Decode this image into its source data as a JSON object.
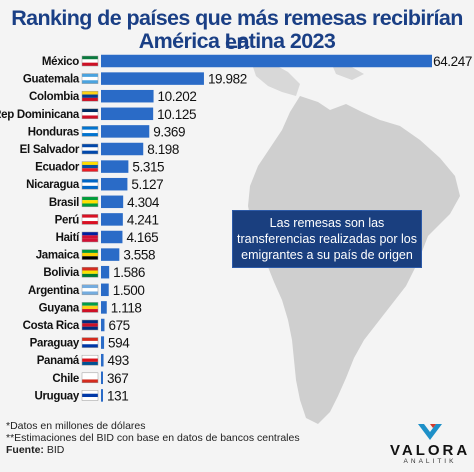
{
  "chart_data": {
    "type": "bar",
    "orientation": "horizontal",
    "title": "Ranking de países que más remesas recibirían en",
    "title_line2": "América Latina 2023",
    "categories": [
      "México",
      "Guatemala",
      "Colombia",
      "Rep Dominicana",
      "Honduras",
      "El Salvador",
      "Ecuador",
      "Nicaragua",
      "Brasil",
      "Perú",
      "Haití",
      "Jamaica",
      "Bolivia",
      "Argentina",
      "Guyana",
      "Costa Rica",
      "Paraguay",
      "Panamá",
      "Chile",
      "Uruguay"
    ],
    "values": [
      64247,
      19982,
      10202,
      10125,
      9369,
      8198,
      5315,
      5127,
      4304,
      4241,
      4165,
      3558,
      1586,
      1500,
      1118,
      675,
      594,
      493,
      367,
      131
    ],
    "value_labels": [
      "64.247",
      "19.982",
      "10.202",
      "10.125",
      "9.369",
      "8.198",
      "5.315",
      "5.127",
      "4.304",
      "4.241",
      "4.165",
      "3.558",
      "1.586",
      "1.500",
      "1.118",
      "675",
      "594",
      "493",
      "367",
      "131"
    ],
    "bar_color": "#2a6bc7",
    "legend": "none",
    "grid": false
  },
  "infobox": {
    "line1": "Las remesas son las",
    "line2": "transferencias realizadas por los",
    "line3": "emigrantes a su país de origen"
  },
  "notes": {
    "note1": "*Datos en millones de dólares",
    "note2": "**Estimaciones del BID con base en datos de bancos centrales",
    "source_label": "Fuente:",
    "source_value": "BID"
  },
  "logo": {
    "name": "VALORA",
    "sub": "ANALITIK"
  },
  "colors": {
    "title": "#1a3f85",
    "map": "#c9c9c9",
    "infobox_bg": "#1a3f7f"
  }
}
